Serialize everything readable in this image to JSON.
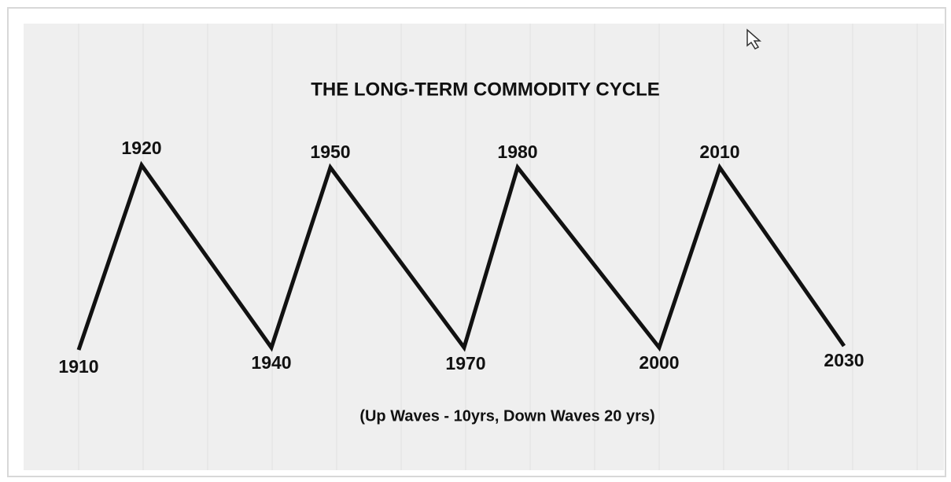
{
  "title": "THE LONG-TERM COMMODITY CYCLE",
  "labels": [
    "1910",
    "1920",
    "1940",
    "1950",
    "1970",
    "1980",
    "2000",
    "2010",
    "2030"
  ],
  "note": "(Up Waves - 10yrs, Down Waves 20 yrs)"
}
